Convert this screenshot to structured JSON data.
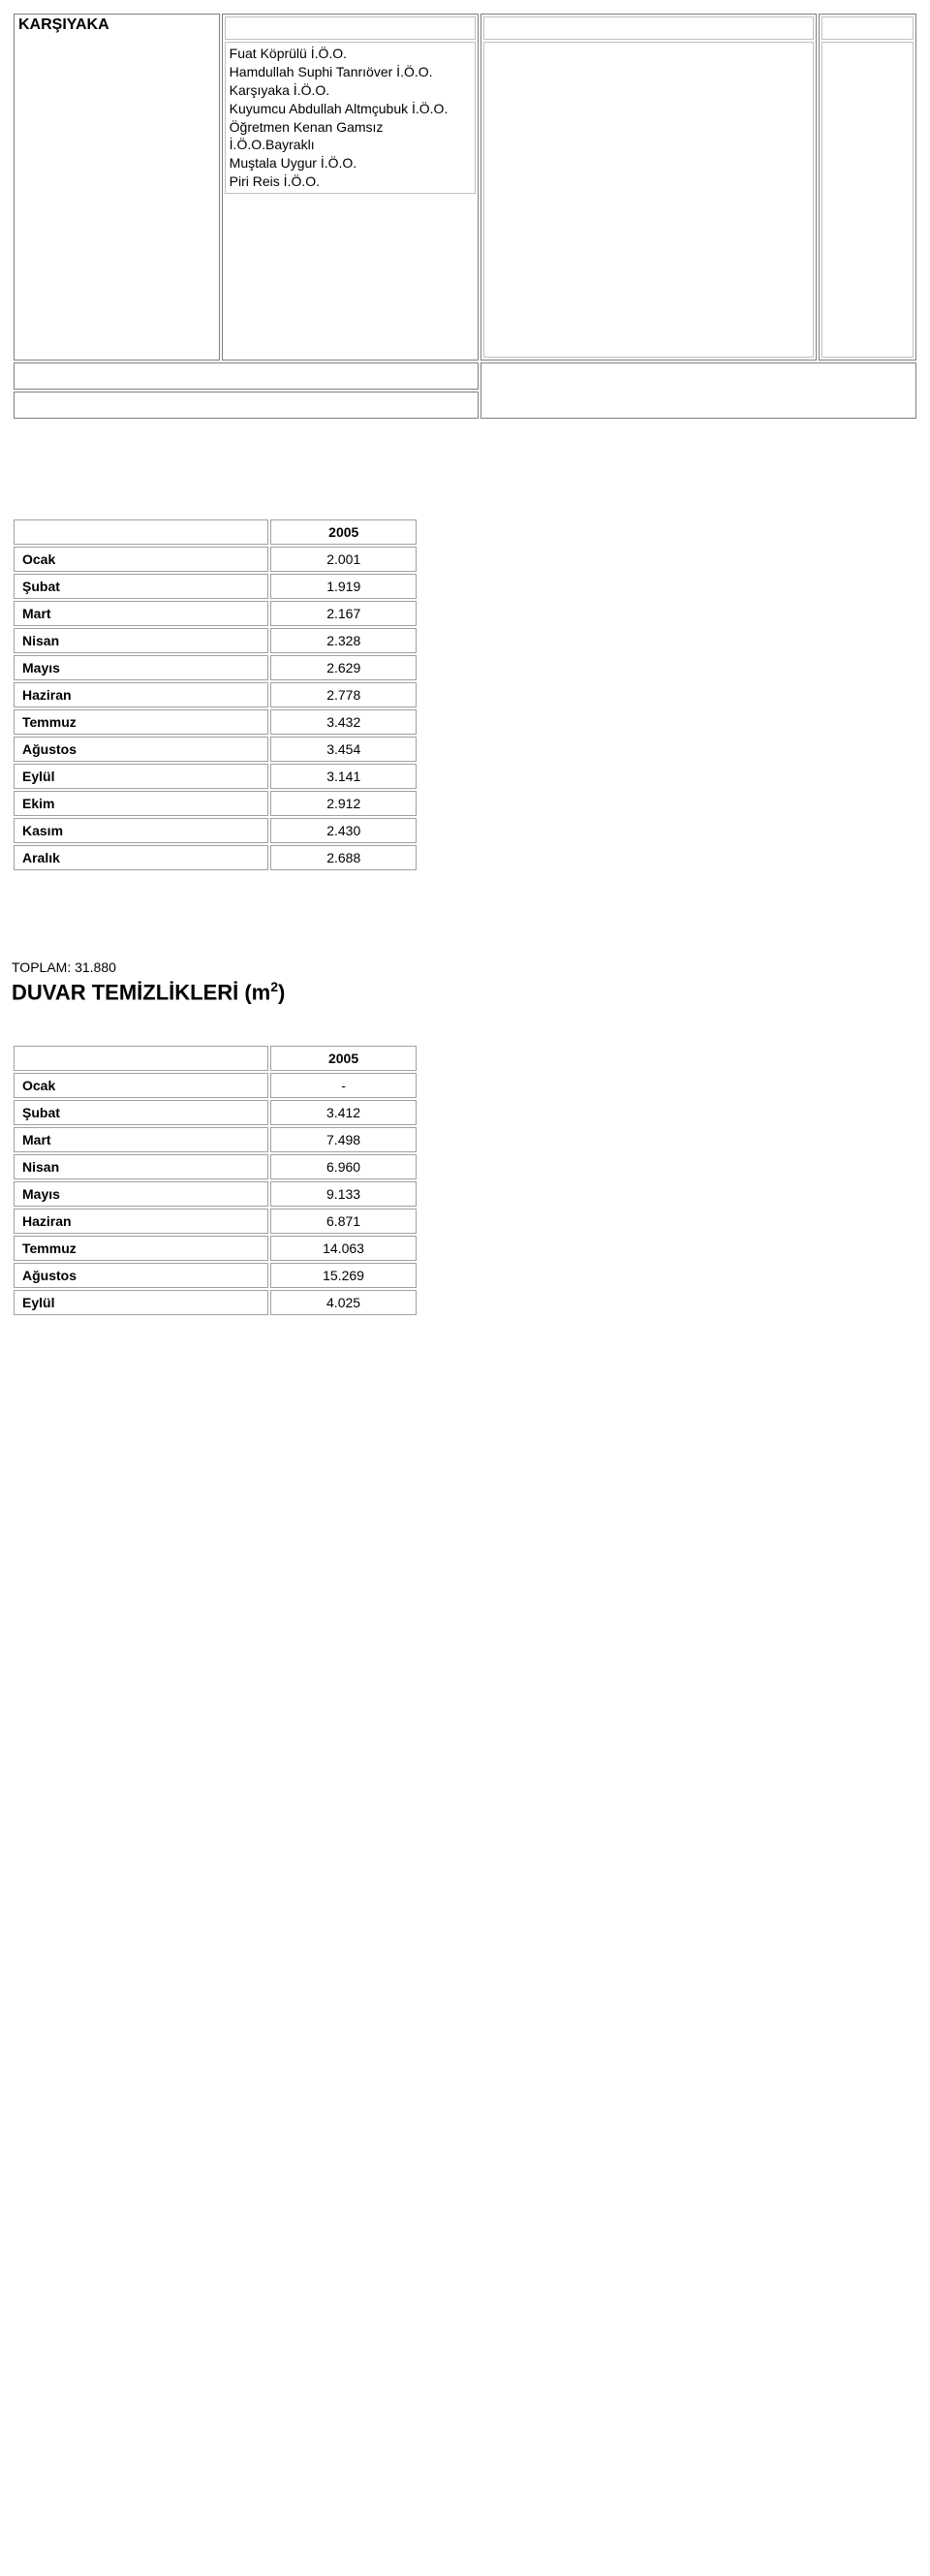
{
  "top": {
    "heading": "KARŞIYAKA",
    "schools": [
      "Fuat Köprülü İ.Ö.O.",
      "Hamdullah Suphi Tanrıöver İ.Ö.O.",
      "Karşıyaka İ.Ö.O.",
      "Kuyumcu Abdullah Altmçubuk İ.Ö.O.",
      "Öğretmen Kenan Gamsız İ.Ö.O.Bayraklı",
      "Muştala Uygur İ.Ö.O.",
      "Piri Reis İ.Ö.O."
    ]
  },
  "table1": {
    "year": "2005",
    "rows": [
      {
        "month": "Ocak",
        "value": "2.001"
      },
      {
        "month": "Şubat",
        "value": "1.919"
      },
      {
        "month": "Mart",
        "value": "2.167"
      },
      {
        "month": "Nisan",
        "value": "2.328"
      },
      {
        "month": "Mayıs",
        "value": "2.629"
      },
      {
        "month": "Haziran",
        "value": "2.778"
      },
      {
        "month": "Temmuz",
        "value": "3.432"
      },
      {
        "month": "Ağustos",
        "value": "3.454"
      },
      {
        "month": "Eylül",
        "value": "3.141"
      },
      {
        "month": "Ekim",
        "value": "2.912"
      },
      {
        "month": "Kasım",
        "value": "2.430"
      },
      {
        "month": "Aralık",
        "value": "2.688"
      }
    ]
  },
  "section": {
    "total_label": "TOPLAM: 31.880",
    "title_prefix": "DUVAR TEMİZLİKLERİ (m",
    "title_sup": "2",
    "title_suffix": ")"
  },
  "table2": {
    "year": "2005",
    "rows": [
      {
        "month": "Ocak",
        "value": "-"
      },
      {
        "month": "Şubat",
        "value": "3.412"
      },
      {
        "month": "Mart",
        "value": "7.498"
      },
      {
        "month": "Nisan",
        "value": "6.960"
      },
      {
        "month": "Mayıs",
        "value": "9.133"
      },
      {
        "month": "Haziran",
        "value": "6.871"
      },
      {
        "month": "Temmuz",
        "value": "14.063"
      },
      {
        "month": "Ağustos",
        "value": "15.269"
      },
      {
        "month": "Eylül",
        "value": "4.025"
      }
    ]
  }
}
